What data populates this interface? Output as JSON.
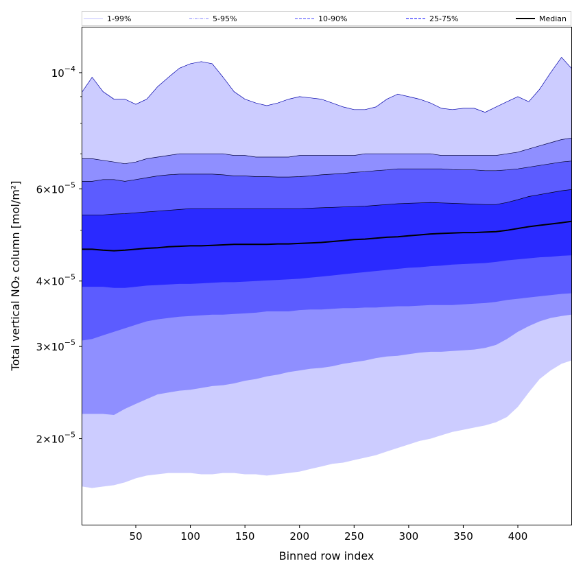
{
  "chart_data": {
    "type": "area",
    "title": "",
    "xlabel": "Binned row index",
    "ylabel": "Total vertical NO₂ column [mol/m²]",
    "yscale": "log",
    "xlim": [
      1,
      449
    ],
    "ylim": [
      1.37e-05,
      0.000122
    ],
    "grid": false,
    "legend_position": "top",
    "x_ticks": [
      50,
      100,
      150,
      200,
      250,
      300,
      350,
      400
    ],
    "x_tick_labels": [
      "50",
      "100",
      "150",
      "200",
      "250",
      "300",
      "350",
      "400"
    ],
    "y_ticks": [
      {
        "value": 0.0001,
        "mantissa": "",
        "exponent": "−4"
      },
      {
        "value": 6e-05,
        "mantissa": "6",
        "exponent": "−5"
      },
      {
        "value": 4e-05,
        "mantissa": "4",
        "exponent": "−5"
      },
      {
        "value": 3e-05,
        "mantissa": "3",
        "exponent": "−5"
      },
      {
        "value": 2e-05,
        "mantissa": "2",
        "exponent": "−5"
      }
    ],
    "x": [
      1,
      10,
      20,
      30,
      40,
      50,
      60,
      70,
      80,
      90,
      100,
      110,
      120,
      130,
      140,
      150,
      160,
      170,
      180,
      190,
      200,
      210,
      220,
      230,
      240,
      250,
      260,
      270,
      280,
      290,
      300,
      310,
      320,
      330,
      340,
      350,
      360,
      370,
      380,
      390,
      400,
      410,
      420,
      430,
      440,
      449
    ],
    "bands": [
      {
        "name": "1-99%",
        "color": "#ccccff",
        "line_color": "#0000aa",
        "lower": [
          1.62e-05,
          1.61e-05,
          1.62e-05,
          1.63e-05,
          1.65e-05,
          1.68e-05,
          1.7e-05,
          1.71e-05,
          1.72e-05,
          1.72e-05,
          1.72e-05,
          1.71e-05,
          1.71e-05,
          1.72e-05,
          1.72e-05,
          1.71e-05,
          1.71e-05,
          1.7e-05,
          1.71e-05,
          1.72e-05,
          1.73e-05,
          1.75e-05,
          1.77e-05,
          1.79e-05,
          1.8e-05,
          1.82e-05,
          1.84e-05,
          1.86e-05,
          1.89e-05,
          1.92e-05,
          1.95e-05,
          1.98e-05,
          2e-05,
          2.03e-05,
          2.06e-05,
          2.08e-05,
          2.1e-05,
          2.12e-05,
          2.15e-05,
          2.2e-05,
          2.3e-05,
          2.45e-05,
          2.6e-05,
          2.7e-05,
          2.78e-05,
          2.82e-05
        ],
        "upper": [
          9.2e-05,
          9.8e-05,
          9.2e-05,
          8.9e-05,
          8.9e-05,
          8.7e-05,
          8.9e-05,
          9.4e-05,
          9.8e-05,
          0.000102,
          0.000104,
          0.000105,
          0.000104,
          9.8e-05,
          9.2e-05,
          8.9e-05,
          8.75e-05,
          8.65e-05,
          8.75e-05,
          8.9e-05,
          9e-05,
          8.95e-05,
          8.9e-05,
          8.75e-05,
          8.6e-05,
          8.5e-05,
          8.5e-05,
          8.6e-05,
          8.9e-05,
          9.1e-05,
          9e-05,
          8.9e-05,
          8.75e-05,
          8.55e-05,
          8.5e-05,
          8.55e-05,
          8.55e-05,
          8.4e-05,
          8.6e-05,
          8.8e-05,
          9e-05,
          8.8e-05,
          9.3e-05,
          0.0001,
          0.000107,
          0.000102
        ]
      },
      {
        "name": "5-95%",
        "color": "#8f8fff",
        "line_color": "#000044",
        "lower": [
          2.23e-05,
          2.23e-05,
          2.23e-05,
          2.22e-05,
          2.28e-05,
          2.33e-05,
          2.38e-05,
          2.43e-05,
          2.45e-05,
          2.47e-05,
          2.48e-05,
          2.5e-05,
          2.52e-05,
          2.53e-05,
          2.55e-05,
          2.58e-05,
          2.6e-05,
          2.63e-05,
          2.65e-05,
          2.68e-05,
          2.7e-05,
          2.72e-05,
          2.73e-05,
          2.75e-05,
          2.78e-05,
          2.8e-05,
          2.82e-05,
          2.85e-05,
          2.87e-05,
          2.88e-05,
          2.9e-05,
          2.92e-05,
          2.93e-05,
          2.93e-05,
          2.94e-05,
          2.95e-05,
          2.96e-05,
          2.98e-05,
          3.02e-05,
          3.1e-05,
          3.2e-05,
          3.28e-05,
          3.35e-05,
          3.4e-05,
          3.43e-05,
          3.45e-05
        ],
        "upper": [
          6.85e-05,
          6.85e-05,
          6.8e-05,
          6.75e-05,
          6.7e-05,
          6.75e-05,
          6.85e-05,
          6.9e-05,
          6.95e-05,
          7e-05,
          7e-05,
          7e-05,
          7e-05,
          7e-05,
          6.95e-05,
          6.95e-05,
          6.9e-05,
          6.9e-05,
          6.9e-05,
          6.9e-05,
          6.95e-05,
          6.95e-05,
          6.95e-05,
          6.95e-05,
          6.95e-05,
          6.95e-05,
          7e-05,
          7e-05,
          7e-05,
          7e-05,
          7e-05,
          7e-05,
          7e-05,
          6.95e-05,
          6.95e-05,
          6.95e-05,
          6.95e-05,
          6.95e-05,
          6.95e-05,
          7e-05,
          7.05e-05,
          7.15e-05,
          7.25e-05,
          7.35e-05,
          7.45e-05,
          7.5e-05
        ]
      },
      {
        "name": "10-90%",
        "color": "#5c5cff",
        "line_color": "#000022",
        "lower": [
          3.08e-05,
          3.1e-05,
          3.15e-05,
          3.2e-05,
          3.25e-05,
          3.3e-05,
          3.35e-05,
          3.38e-05,
          3.4e-05,
          3.42e-05,
          3.43e-05,
          3.44e-05,
          3.45e-05,
          3.45e-05,
          3.46e-05,
          3.47e-05,
          3.48e-05,
          3.5e-05,
          3.5e-05,
          3.5e-05,
          3.52e-05,
          3.53e-05,
          3.53e-05,
          3.54e-05,
          3.55e-05,
          3.55e-05,
          3.56e-05,
          3.56e-05,
          3.57e-05,
          3.58e-05,
          3.58e-05,
          3.59e-05,
          3.6e-05,
          3.6e-05,
          3.6e-05,
          3.61e-05,
          3.62e-05,
          3.63e-05,
          3.65e-05,
          3.68e-05,
          3.7e-05,
          3.72e-05,
          3.74e-05,
          3.76e-05,
          3.78e-05,
          3.79e-05
        ],
        "upper": [
          6.2e-05,
          6.2e-05,
          6.25e-05,
          6.25e-05,
          6.2e-05,
          6.25e-05,
          6.3e-05,
          6.35e-05,
          6.38e-05,
          6.4e-05,
          6.4e-05,
          6.4e-05,
          6.4e-05,
          6.38e-05,
          6.35e-05,
          6.35e-05,
          6.33e-05,
          6.33e-05,
          6.32e-05,
          6.32e-05,
          6.33e-05,
          6.35e-05,
          6.38e-05,
          6.4e-05,
          6.42e-05,
          6.45e-05,
          6.47e-05,
          6.5e-05,
          6.52e-05,
          6.55e-05,
          6.55e-05,
          6.55e-05,
          6.55e-05,
          6.55e-05,
          6.53e-05,
          6.52e-05,
          6.52e-05,
          6.5e-05,
          6.5e-05,
          6.52e-05,
          6.55e-05,
          6.6e-05,
          6.65e-05,
          6.7e-05,
          6.75e-05,
          6.78e-05
        ]
      },
      {
        "name": "25-75%",
        "color": "#2a2aff",
        "line_color": "#000011",
        "lower": [
          3.9e-05,
          3.9e-05,
          3.9e-05,
          3.88e-05,
          3.88e-05,
          3.9e-05,
          3.92e-05,
          3.93e-05,
          3.94e-05,
          3.95e-05,
          3.95e-05,
          3.96e-05,
          3.97e-05,
          3.98e-05,
          3.98e-05,
          3.99e-05,
          4e-05,
          4.01e-05,
          4.02e-05,
          4.03e-05,
          4.04e-05,
          4.06e-05,
          4.08e-05,
          4.1e-05,
          4.12e-05,
          4.14e-05,
          4.16e-05,
          4.18e-05,
          4.2e-05,
          4.22e-05,
          4.24e-05,
          4.25e-05,
          4.27e-05,
          4.28e-05,
          4.3e-05,
          4.31e-05,
          4.32e-05,
          4.33e-05,
          4.35e-05,
          4.38e-05,
          4.4e-05,
          4.42e-05,
          4.44e-05,
          4.45e-05,
          4.47e-05,
          4.48e-05
        ],
        "upper": [
          5.35e-05,
          5.35e-05,
          5.35e-05,
          5.37e-05,
          5.38e-05,
          5.4e-05,
          5.42e-05,
          5.44e-05,
          5.46e-05,
          5.48e-05,
          5.5e-05,
          5.5e-05,
          5.5e-05,
          5.5e-05,
          5.5e-05,
          5.5e-05,
          5.5e-05,
          5.5e-05,
          5.5e-05,
          5.5e-05,
          5.5e-05,
          5.51e-05,
          5.52e-05,
          5.53e-05,
          5.54e-05,
          5.55e-05,
          5.56e-05,
          5.58e-05,
          5.6e-05,
          5.62e-05,
          5.63e-05,
          5.64e-05,
          5.65e-05,
          5.64e-05,
          5.63e-05,
          5.62e-05,
          5.61e-05,
          5.6e-05,
          5.6e-05,
          5.65e-05,
          5.72e-05,
          5.8e-05,
          5.85e-05,
          5.9e-05,
          5.95e-05,
          5.98e-05
        ]
      }
    ],
    "median": {
      "name": "Median",
      "color": "#000000",
      "values": [
        4.6e-05,
        4.6e-05,
        4.58e-05,
        4.57e-05,
        4.58e-05,
        4.6e-05,
        4.62e-05,
        4.63e-05,
        4.65e-05,
        4.66e-05,
        4.67e-05,
        4.67e-05,
        4.68e-05,
        4.69e-05,
        4.7e-05,
        4.7e-05,
        4.7e-05,
        4.7e-05,
        4.71e-05,
        4.71e-05,
        4.72e-05,
        4.73e-05,
        4.74e-05,
        4.76e-05,
        4.78e-05,
        4.8e-05,
        4.81e-05,
        4.83e-05,
        4.85e-05,
        4.86e-05,
        4.88e-05,
        4.9e-05,
        4.92e-05,
        4.93e-05,
        4.94e-05,
        4.95e-05,
        4.95e-05,
        4.96e-05,
        4.97e-05,
        5e-05,
        5.04e-05,
        5.08e-05,
        5.11e-05,
        5.14e-05,
        5.17e-05,
        5.2e-05
      ]
    },
    "legend": [
      {
        "label": "1-99%",
        "color": "#ccccff",
        "style": "solid"
      },
      {
        "label": "5-95%",
        "color": "#9999ff",
        "style": "dashdot"
      },
      {
        "label": "10-90%",
        "color": "#6666ff",
        "style": "dashed"
      },
      {
        "label": "25-75%",
        "color": "#3333ff",
        "style": "dashed"
      },
      {
        "label": "Median",
        "color": "#000000",
        "style": "solid"
      }
    ]
  }
}
